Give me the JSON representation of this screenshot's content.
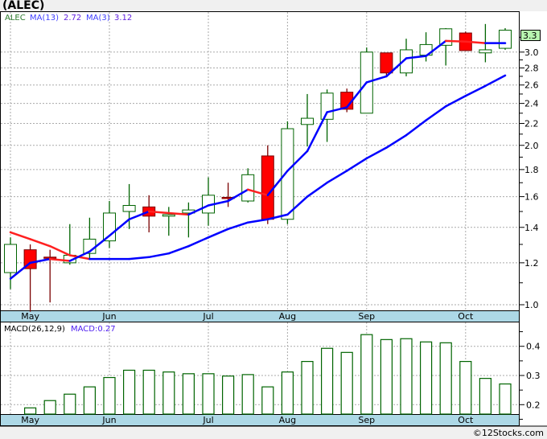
{
  "title": "(ALEC)",
  "footer": "©12Stocks.com",
  "legend": {
    "symbol": "ALEC",
    "ma_long_label": "MA(13)",
    "ma_long_value": "2.72",
    "ma_short_label": "MA(3)",
    "ma_short_value": "3.12",
    "macd_label": "MACD(26,12,9)",
    "macd_value": "MACD:0.27"
  },
  "last_price_label": "3.3",
  "colors": {
    "up": "#006400",
    "down_fill": "#ff0000",
    "down_border": "#7a0000",
    "ma": "#0000ff",
    "ma_falling": "#ff2020",
    "band": "#add8e6",
    "macd": "#006400"
  },
  "chart_data": [
    {
      "type": "candlestick",
      "title": "(ALEC)",
      "yscale": "log",
      "ylim": [
        0.97,
        3.45
      ],
      "yticks": [
        "3.0",
        "2.8",
        "2.6",
        "2.4",
        "2.2",
        "2.0",
        "1.8",
        "1.6",
        "1.4",
        "1.2",
        "1.0"
      ],
      "months": [
        {
          "label": "May",
          "index": 1
        },
        {
          "label": "Jun",
          "index": 5
        },
        {
          "label": "Jul",
          "index": 10
        },
        {
          "label": "Aug",
          "index": 14
        },
        {
          "label": "Sep",
          "index": 18
        },
        {
          "label": "Oct",
          "index": 23
        }
      ],
      "month_grid_indices": [
        0,
        5,
        10,
        14,
        18,
        23
      ],
      "candles": [
        {
          "o": 1.15,
          "h": 1.34,
          "l": 1.07,
          "c": 1.3
        },
        {
          "o": 1.27,
          "h": 1.3,
          "l": 0.97,
          "c": 1.17
        },
        {
          "o": 1.23,
          "h": 1.27,
          "l": 1.01,
          "c": 1.225
        },
        {
          "o": 1.2,
          "h": 1.42,
          "l": 1.19,
          "c": 1.24
        },
        {
          "o": 1.25,
          "h": 1.46,
          "l": 1.22,
          "c": 1.33
        },
        {
          "o": 1.32,
          "h": 1.57,
          "l": 1.28,
          "c": 1.49
        },
        {
          "o": 1.5,
          "h": 1.69,
          "l": 1.39,
          "c": 1.54
        },
        {
          "o": 1.53,
          "h": 1.61,
          "l": 1.37,
          "c": 1.47
        },
        {
          "o": 1.47,
          "h": 1.53,
          "l": 1.35,
          "c": 1.48
        },
        {
          "o": 1.49,
          "h": 1.56,
          "l": 1.34,
          "c": 1.51
        },
        {
          "o": 1.49,
          "h": 1.74,
          "l": 1.41,
          "c": 1.61
        },
        {
          "o": 1.595,
          "h": 1.7,
          "l": 1.53,
          "c": 1.59
        },
        {
          "o": 1.57,
          "h": 1.81,
          "l": 1.56,
          "c": 1.76
        },
        {
          "o": 1.91,
          "h": 2.0,
          "l": 1.42,
          "c": 1.45
        },
        {
          "o": 1.45,
          "h": 2.22,
          "l": 1.42,
          "c": 2.15
        },
        {
          "o": 2.19,
          "h": 2.5,
          "l": 1.99,
          "c": 2.25
        },
        {
          "o": 2.24,
          "h": 2.55,
          "l": 2.03,
          "c": 2.51
        },
        {
          "o": 2.52,
          "h": 2.56,
          "l": 2.31,
          "c": 2.34
        },
        {
          "o": 2.3,
          "h": 3.06,
          "l": 2.3,
          "c": 3.0
        },
        {
          "o": 2.99,
          "h": 2.99,
          "l": 2.7,
          "c": 2.74
        },
        {
          "o": 2.74,
          "h": 3.18,
          "l": 2.7,
          "c": 3.03
        },
        {
          "o": 2.96,
          "h": 3.27,
          "l": 2.88,
          "c": 3.1
        },
        {
          "o": 3.09,
          "h": 3.33,
          "l": 2.83,
          "c": 3.32
        },
        {
          "o": 3.26,
          "h": 3.28,
          "l": 3.02,
          "c": 3.02
        },
        {
          "o": 2.99,
          "h": 3.39,
          "l": 2.87,
          "c": 3.03
        },
        {
          "o": 3.05,
          "h": 3.33,
          "l": 3.03,
          "c": 3.3
        }
      ],
      "series": [
        {
          "name": "MA(13)",
          "start_index": 0,
          "values": [
            1.37,
            1.33,
            1.29,
            1.24,
            1.22,
            1.22,
            1.22,
            1.23,
            1.25,
            1.29,
            1.34,
            1.39,
            1.43,
            1.45,
            1.48,
            1.6,
            1.7,
            1.79,
            1.89,
            1.98,
            2.09,
            2.23,
            2.37,
            2.48,
            2.59,
            2.71
          ]
        },
        {
          "name": "MA(3)",
          "start_index": 0,
          "values": [
            1.12,
            1.2,
            1.22,
            1.21,
            1.26,
            1.35,
            1.45,
            1.5,
            1.49,
            1.48,
            1.54,
            1.57,
            1.65,
            1.61,
            1.79,
            1.95,
            2.31,
            2.36,
            2.63,
            2.7,
            2.92,
            2.95,
            3.15,
            3.14,
            3.12,
            3.12
          ]
        }
      ]
    },
    {
      "type": "bar",
      "title": "MACD(26,12,9)",
      "ylim": [
        0.16,
        0.48
      ],
      "yticks": [
        "0.4",
        "0.3",
        "0.2"
      ],
      "start_index": 1,
      "values": [
        0.189,
        0.214,
        0.236,
        0.261,
        0.293,
        0.318,
        0.318,
        0.312,
        0.306,
        0.306,
        0.298,
        0.303,
        0.261,
        0.312,
        0.348,
        0.393,
        0.379,
        0.44,
        0.423,
        0.426,
        0.415,
        0.412,
        0.348,
        0.29,
        0.271
      ]
    }
  ]
}
